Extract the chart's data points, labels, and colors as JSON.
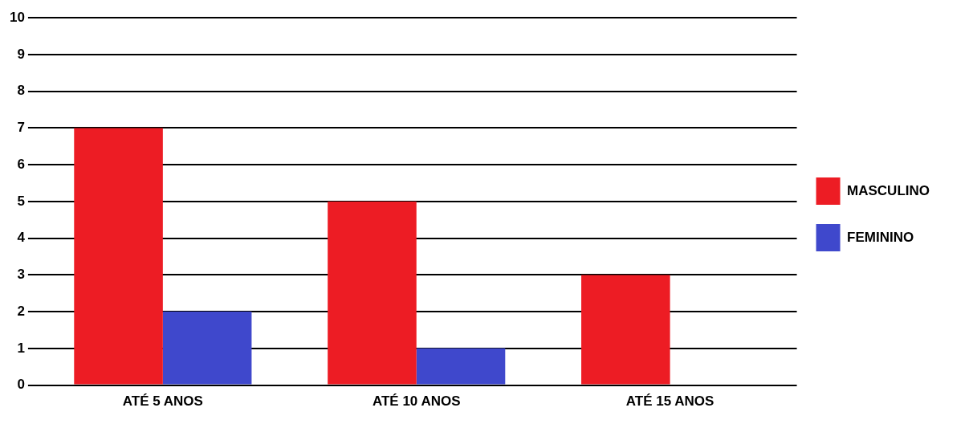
{
  "chart_data": {
    "type": "bar",
    "categories": [
      "ATÉ 5 ANOS",
      "ATÉ 10 ANOS",
      "ATÉ 15 ANOS"
    ],
    "series": [
      {
        "name": "MASCULINO",
        "color": "#ed1c24",
        "values": [
          7,
          5,
          3
        ]
      },
      {
        "name": "FEMININO",
        "color": "#3f48cc",
        "values": [
          2,
          1,
          0
        ]
      }
    ],
    "ylim": [
      0,
      10
    ],
    "yticks": [
      0,
      1,
      2,
      3,
      4,
      5,
      6,
      7,
      8,
      9,
      10
    ],
    "grid": "y",
    "legend": "right"
  }
}
